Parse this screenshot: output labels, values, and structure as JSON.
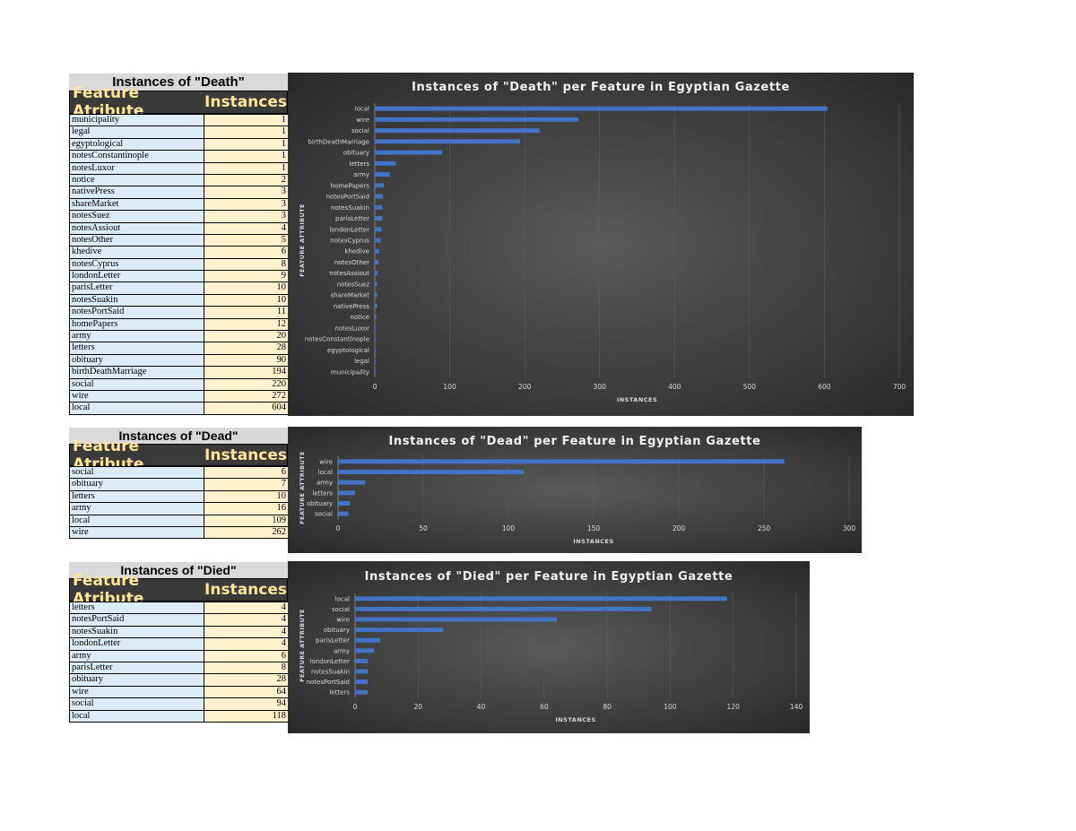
{
  "tables": [
    {
      "title": "Instances of \"Death\"",
      "col_feature": "Feature Atribute",
      "col_instances": "Instances",
      "rows": [
        {
          "feature": "municipality",
          "value": "1"
        },
        {
          "feature": "legal",
          "value": "1"
        },
        {
          "feature": "egyptological",
          "value": "1"
        },
        {
          "feature": "notesConstantinople",
          "value": "1"
        },
        {
          "feature": "notesLuxor",
          "value": "1"
        },
        {
          "feature": "notice",
          "value": "2"
        },
        {
          "feature": "nativePress",
          "value": "3"
        },
        {
          "feature": "shareMarket",
          "value": "3"
        },
        {
          "feature": "notesSuez",
          "value": "3"
        },
        {
          "feature": "notesAssiout",
          "value": "4"
        },
        {
          "feature": "notesOther",
          "value": "5"
        },
        {
          "feature": "khedive",
          "value": "6"
        },
        {
          "feature": "notesCyprus",
          "value": "8"
        },
        {
          "feature": "londonLetter",
          "value": "9"
        },
        {
          "feature": "parisLetter",
          "value": "10"
        },
        {
          "feature": "notesSuakin",
          "value": "10"
        },
        {
          "feature": "notesPortSaid",
          "value": "11"
        },
        {
          "feature": "homePapers",
          "value": "12"
        },
        {
          "feature": "army",
          "value": "20"
        },
        {
          "feature": "letters",
          "value": "28"
        },
        {
          "feature": "obituary",
          "value": "90"
        },
        {
          "feature": "birthDeathMarriage",
          "value": "194"
        },
        {
          "feature": "social",
          "value": "220"
        },
        {
          "feature": "wire",
          "value": "272"
        },
        {
          "feature": "local",
          "value": "604"
        }
      ]
    },
    {
      "title": "Instances of \"Dead\"",
      "col_feature": "Feature Atribute",
      "col_instances": "Instances",
      "rows": [
        {
          "feature": "social",
          "value": "6"
        },
        {
          "feature": "obituary",
          "value": "7"
        },
        {
          "feature": "letters",
          "value": "10"
        },
        {
          "feature": "army",
          "value": "16"
        },
        {
          "feature": "local",
          "value": "109"
        },
        {
          "feature": "wire",
          "value": "262"
        }
      ]
    },
    {
      "title": "Instances of \"Died\"",
      "col_feature": "Feature Atribute",
      "col_instances": "Instances",
      "rows": [
        {
          "feature": "letters",
          "value": "4"
        },
        {
          "feature": "notesPortSaid",
          "value": "4"
        },
        {
          "feature": "notesSuakin",
          "value": "4"
        },
        {
          "feature": "londonLetter",
          "value": "4"
        },
        {
          "feature": "army",
          "value": "6"
        },
        {
          "feature": "parisLetter",
          "value": "8"
        },
        {
          "feature": "obituary",
          "value": "28"
        },
        {
          "feature": "wire",
          "value": "64"
        },
        {
          "feature": "social",
          "value": "94"
        },
        {
          "feature": "local",
          "value": "118"
        }
      ]
    }
  ],
  "chart_data": [
    {
      "type": "bar",
      "title": "Instances of \"Death\" per Feature in Egyptian Gazette",
      "xlabel": "INSTANCES",
      "ylabel": "FEATURE ATTRIBUTE",
      "xlim": [
        0,
        700
      ],
      "ticks": [
        0,
        100,
        200,
        300,
        400,
        500,
        600,
        700
      ],
      "categories": [
        "local",
        "wire",
        "social",
        "birthDeathMarriage",
        "obituary",
        "letters",
        "army",
        "homePapers",
        "notesPortSaid",
        "notesSuakin",
        "parisLetter",
        "londonLetter",
        "notesCyprus",
        "khedive",
        "notesOther",
        "notesAssiout",
        "notesSuez",
        "shareMarket",
        "nativePress",
        "notice",
        "notesLuxor",
        "notesConstantinople",
        "egyptological",
        "legal",
        "municipality"
      ],
      "values": [
        604,
        272,
        220,
        194,
        90,
        28,
        20,
        12,
        11,
        10,
        10,
        9,
        8,
        6,
        5,
        4,
        3,
        3,
        3,
        2,
        1,
        1,
        1,
        1,
        1
      ],
      "grid": true,
      "bar_color": "#4472c4"
    },
    {
      "type": "bar",
      "title": "Instances of \"Dead\" per Feature in Egyptian Gazette",
      "xlabel": "INSTANCES",
      "ylabel": "FEATURE ATTRIBUTE",
      "xlim": [
        0,
        300
      ],
      "ticks": [
        0,
        50,
        100,
        150,
        200,
        250,
        300
      ],
      "categories": [
        "wire",
        "local",
        "army",
        "letters",
        "obituary",
        "social"
      ],
      "values": [
        262,
        109,
        16,
        10,
        7,
        6
      ],
      "grid": true,
      "bar_color": "#4472c4"
    },
    {
      "type": "bar",
      "title": "Instances of \"Died\" per Feature in Egyptian Gazette",
      "xlabel": "INSTANCES",
      "ylabel": "FEATURE ATTRIBUTE",
      "xlim": [
        0,
        140
      ],
      "ticks": [
        0,
        20,
        40,
        60,
        80,
        100,
        120,
        140
      ],
      "categories": [
        "local",
        "social",
        "wire",
        "obituary",
        "parisLetter",
        "army",
        "londonLetter",
        "notesSuakin",
        "notesPortSaid",
        "letters"
      ],
      "values": [
        118,
        94,
        64,
        28,
        8,
        6,
        4,
        4,
        4,
        4
      ],
      "grid": true,
      "bar_color": "#4472c4"
    }
  ]
}
